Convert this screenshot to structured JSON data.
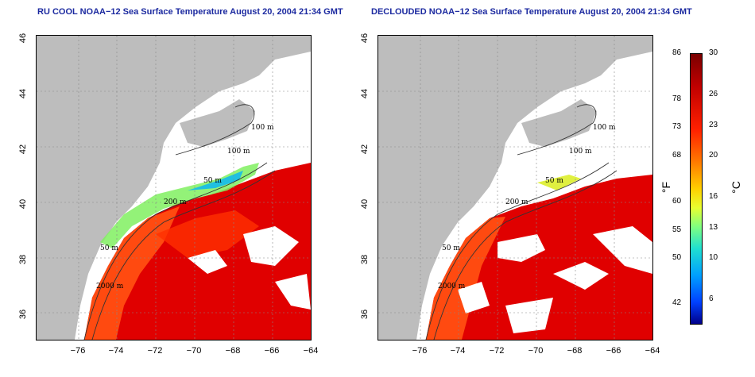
{
  "panels": [
    {
      "title": "RU COOL NOAA−12 Sea Surface Temperature August 20, 2004 21:34 GMT"
    },
    {
      "title": "DECLOUDED NOAA−12 Sea Surface Temperature August 20, 2004 21:34 GMT"
    }
  ],
  "map": {
    "yticks": [
      "46",
      "44",
      "42",
      "40",
      "38",
      "36"
    ],
    "xticks": [
      "−76",
      "−74",
      "−72",
      "−70",
      "−68",
      "−66",
      "−64"
    ],
    "contours": [
      "100 m",
      "100 m",
      "50 m",
      "200 m",
      "50 m",
      "2000 m"
    ]
  },
  "colorbar": {
    "fahrenheit": [
      "86",
      "78",
      "73",
      "68",
      "60",
      "55",
      "50",
      "42"
    ],
    "celsius": [
      "30",
      "26",
      "23",
      "20",
      "16",
      "13",
      "10",
      "6"
    ],
    "f_unit": "°F",
    "c_unit": "°C",
    "colors": {
      "hot": "#c00000",
      "warm": "#ff3a00",
      "mid": "#ffd000",
      "cool": "#20e0d0",
      "cold": "#0040ff",
      "land": "#bdbdbd"
    }
  }
}
